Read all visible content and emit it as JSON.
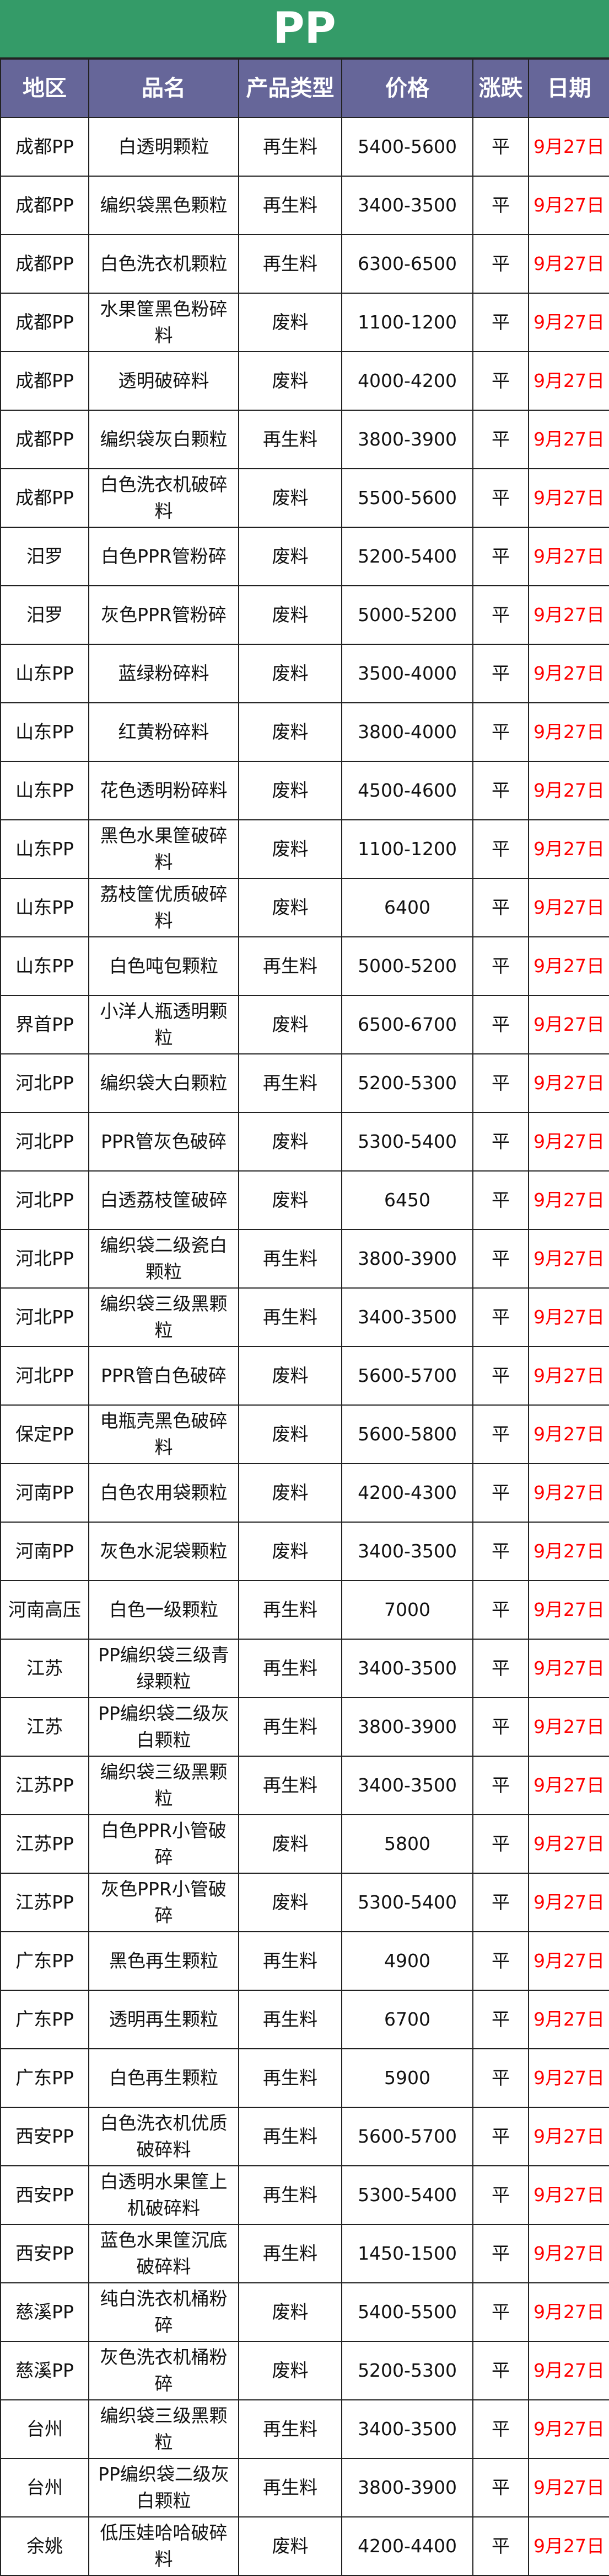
{
  "title": "PP",
  "colors": {
    "title_bg": "#349b68",
    "header_bg": "#666699",
    "date_text": "#ff0000"
  },
  "headers": [
    "地区",
    "品名",
    "产品类型",
    "价格",
    "涨跌",
    "日期"
  ],
  "rows": [
    [
      "成都PP",
      "白透明颗粒",
      "再生料",
      "5400-5600",
      "平",
      "9月27日"
    ],
    [
      "成都PP",
      "编织袋黑色颗粒",
      "再生料",
      "3400-3500",
      "平",
      "9月27日"
    ],
    [
      "成都PP",
      "白色洗衣机颗粒",
      "再生料",
      "6300-6500",
      "平",
      "9月27日"
    ],
    [
      "成都PP",
      "水果筐黑色粉碎料",
      "废料",
      "1100-1200",
      "平",
      "9月27日"
    ],
    [
      "成都PP",
      "透明破碎料",
      "废料",
      "4000-4200",
      "平",
      "9月27日"
    ],
    [
      "成都PP",
      "编织袋灰白颗粒",
      "再生料",
      "3800-3900",
      "平",
      "9月27日"
    ],
    [
      "成都PP",
      "白色洗衣机破碎料",
      "废料",
      "5500-5600",
      "平",
      "9月27日"
    ],
    [
      "汨罗",
      "白色PPR管粉碎",
      "废料",
      "5200-5400",
      "平",
      "9月27日"
    ],
    [
      "汨罗",
      "灰色PPR管粉碎",
      "废料",
      "5000-5200",
      "平",
      "9月27日"
    ],
    [
      "山东PP",
      "蓝绿粉碎料",
      "废料",
      "3500-4000",
      "平",
      "9月27日"
    ],
    [
      "山东PP",
      "红黄粉碎料",
      "废料",
      "3800-4000",
      "平",
      "9月27日"
    ],
    [
      "山东PP",
      "花色透明粉碎料",
      "废料",
      "4500-4600",
      "平",
      "9月27日"
    ],
    [
      "山东PP",
      "黑色水果筐破碎料",
      "废料",
      "1100-1200",
      "平",
      "9月27日"
    ],
    [
      "山东PP",
      "荔枝筐优质破碎料",
      "废料",
      "6400",
      "平",
      "9月27日"
    ],
    [
      "山东PP",
      "白色吨包颗粒",
      "再生料",
      "5000-5200",
      "平",
      "9月27日"
    ],
    [
      "界首PP",
      "小洋人瓶透明颗粒",
      "废料",
      "6500-6700",
      "平",
      "9月27日"
    ],
    [
      "河北PP",
      "编织袋大白颗粒",
      "再生料",
      "5200-5300",
      "平",
      "9月27日"
    ],
    [
      "河北PP",
      "PPR管灰色破碎",
      "废料",
      "5300-5400",
      "平",
      "9月27日"
    ],
    [
      "河北PP",
      "白透荔枝筐破碎",
      "废料",
      "6450",
      "平",
      "9月27日"
    ],
    [
      "河北PP",
      "编织袋二级瓷白颗粒",
      "再生料",
      "3800-3900",
      "平",
      "9月27日"
    ],
    [
      "河北PP",
      "编织袋三级黑颗粒",
      "再生料",
      "3400-3500",
      "平",
      "9月27日"
    ],
    [
      "河北PP",
      "PPR管白色破碎",
      "废料",
      "5600-5700",
      "平",
      "9月27日"
    ],
    [
      "保定PP",
      "电瓶壳黑色破碎料",
      "废料",
      "5600-5800",
      "平",
      "9月27日"
    ],
    [
      "河南PP",
      "白色农用袋颗粒",
      "废料",
      "4200-4300",
      "平",
      "9月27日"
    ],
    [
      "河南PP",
      "灰色水泥袋颗粒",
      "废料",
      "3400-3500",
      "平",
      "9月27日"
    ],
    [
      "河南高压",
      "白色一级颗粒",
      "再生料",
      "7000",
      "平",
      "9月27日"
    ],
    [
      "江苏",
      "PP编织袋三级青绿颗粒",
      "再生料",
      "3400-3500",
      "平",
      "9月27日"
    ],
    [
      "江苏",
      "PP编织袋二级灰白颗粒",
      "再生料",
      "3800-3900",
      "平",
      "9月27日"
    ],
    [
      "江苏PP",
      "编织袋三级黑颗粒",
      "再生料",
      "3400-3500",
      "平",
      "9月27日"
    ],
    [
      "江苏PP",
      "白色PPR小管破碎",
      "废料",
      "5800",
      "平",
      "9月27日"
    ],
    [
      "江苏PP",
      "灰色PPR小管破碎",
      "废料",
      "5300-5400",
      "平",
      "9月27日"
    ],
    [
      "广东PP",
      "黑色再生颗粒",
      "再生料",
      "4900",
      "平",
      "9月27日"
    ],
    [
      "广东PP",
      "透明再生颗粒",
      "再生料",
      "6700",
      "平",
      "9月27日"
    ],
    [
      "广东PP",
      "白色再生颗粒",
      "再生料",
      "5900",
      "平",
      "9月27日"
    ],
    [
      "西安PP",
      "白色洗衣机优质破碎料",
      "再生料",
      "5600-5700",
      "平",
      "9月27日"
    ],
    [
      "西安PP",
      "白透明水果筐上机破碎料",
      "再生料",
      "5300-5400",
      "平",
      "9月27日"
    ],
    [
      "西安PP",
      "蓝色水果筐沉底破碎料",
      "再生料",
      "1450-1500",
      "平",
      "9月27日"
    ],
    [
      "慈溪PP",
      "纯白洗衣机桶粉碎",
      "废料",
      "5400-5500",
      "平",
      "9月27日"
    ],
    [
      "慈溪PP",
      "灰色洗衣机桶粉碎",
      "废料",
      "5200-5300",
      "平",
      "9月27日"
    ],
    [
      "台州",
      "编织袋三级黑颗粒",
      "再生料",
      "3400-3500",
      "平",
      "9月27日"
    ],
    [
      "台州",
      "PP编织袋二级灰白颗粒",
      "再生料",
      "3800-3900",
      "平",
      "9月27日"
    ],
    [
      "余姚",
      "低压娃哈哈破碎料",
      "废料",
      "4200-4400",
      "平",
      "9月27日"
    ]
  ]
}
